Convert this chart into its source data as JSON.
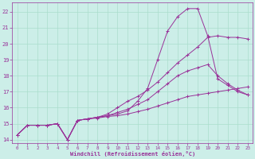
{
  "bg_color": "#cceee8",
  "grid_color": "#aaddcc",
  "line_color": "#993399",
  "xlabel": "Windchill (Refroidissement éolien,°C)",
  "xlim": [
    -0.5,
    23.5
  ],
  "ylim": [
    13.8,
    22.6
  ],
  "yticks": [
    14,
    15,
    16,
    17,
    18,
    19,
    20,
    21,
    22
  ],
  "xticks": [
    0,
    1,
    2,
    3,
    4,
    5,
    6,
    7,
    8,
    9,
    10,
    11,
    12,
    13,
    14,
    15,
    16,
    17,
    18,
    19,
    20,
    21,
    22,
    23
  ],
  "line1_x": [
    0,
    1,
    2,
    3,
    4,
    5,
    6,
    7,
    8,
    9,
    10,
    11,
    12,
    13,
    14,
    15,
    16,
    17,
    18,
    19,
    20,
    21,
    22,
    23
  ],
  "line1_y": [
    14.3,
    14.9,
    14.9,
    14.9,
    15.0,
    14.0,
    15.2,
    15.3,
    15.35,
    15.45,
    15.5,
    15.6,
    15.75,
    15.9,
    16.1,
    16.3,
    16.5,
    16.7,
    16.8,
    16.9,
    17.0,
    17.1,
    17.2,
    17.3
  ],
  "line2_x": [
    0,
    1,
    2,
    3,
    4,
    5,
    6,
    7,
    8,
    9,
    10,
    11,
    12,
    13,
    14,
    15,
    16,
    17,
    18,
    19,
    20,
    21,
    22,
    23
  ],
  "line2_y": [
    14.3,
    14.9,
    14.9,
    14.9,
    15.0,
    14.0,
    15.2,
    15.3,
    15.4,
    15.5,
    15.6,
    15.8,
    16.4,
    17.2,
    19.0,
    20.8,
    21.7,
    22.2,
    22.2,
    20.5,
    17.8,
    17.4,
    17.0,
    16.8
  ],
  "line3_x": [
    0,
    1,
    2,
    3,
    4,
    5,
    6,
    7,
    8,
    9,
    10,
    11,
    12,
    13,
    14,
    15,
    16,
    17,
    18,
    19,
    20,
    21,
    22,
    23
  ],
  "line3_y": [
    14.3,
    14.9,
    14.9,
    14.9,
    15.0,
    14.0,
    15.2,
    15.3,
    15.4,
    15.5,
    15.7,
    15.9,
    16.2,
    16.5,
    17.0,
    17.5,
    18.0,
    18.3,
    18.5,
    18.7,
    18.0,
    17.5,
    17.1,
    16.8
  ],
  "line4_x": [
    0,
    1,
    2,
    3,
    4,
    5,
    6,
    7,
    8,
    9,
    10,
    11,
    12,
    13,
    14,
    15,
    16,
    17,
    18,
    19,
    20,
    21,
    22,
    23
  ],
  "line4_y": [
    14.3,
    14.9,
    14.9,
    14.9,
    15.0,
    14.0,
    15.2,
    15.3,
    15.4,
    15.6,
    16.0,
    16.4,
    16.7,
    17.1,
    17.6,
    18.2,
    18.8,
    19.3,
    19.8,
    20.4,
    20.5,
    20.4,
    20.4,
    20.3
  ]
}
